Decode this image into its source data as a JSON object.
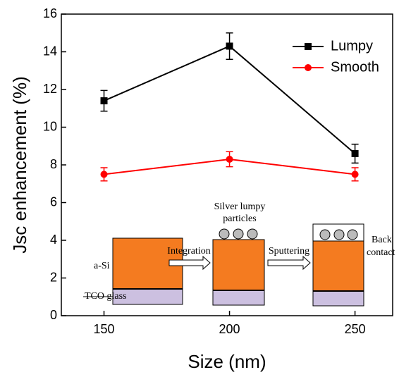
{
  "chart_data": {
    "type": "line",
    "x_label": "Size (nm)",
    "y_label": "Jsc enhancement (%)",
    "x": [
      150,
      200,
      250
    ],
    "series": [
      {
        "name": "Lumpy",
        "color": "#000000",
        "marker": "square",
        "values": [
          11.4,
          14.3,
          8.6
        ],
        "errors": [
          0.55,
          0.7,
          0.5
        ]
      },
      {
        "name": "Smooth",
        "color": "#ff0000",
        "marker": "circle",
        "values": [
          7.5,
          8.3,
          7.5
        ],
        "errors": [
          0.35,
          0.4,
          0.35
        ]
      }
    ],
    "xlim": [
      133,
      265
    ],
    "xticks": [
      150,
      200,
      250
    ],
    "ylim": [
      0,
      16
    ],
    "yticks": [
      0,
      2,
      4,
      6,
      8,
      10,
      12,
      14,
      16
    ],
    "legend": "upper right",
    "annotations": [
      "a-Si",
      "TCO glass",
      "Integration",
      "Silver lumpy",
      "particles",
      "Sputtering",
      "Back",
      "contact"
    ]
  }
}
